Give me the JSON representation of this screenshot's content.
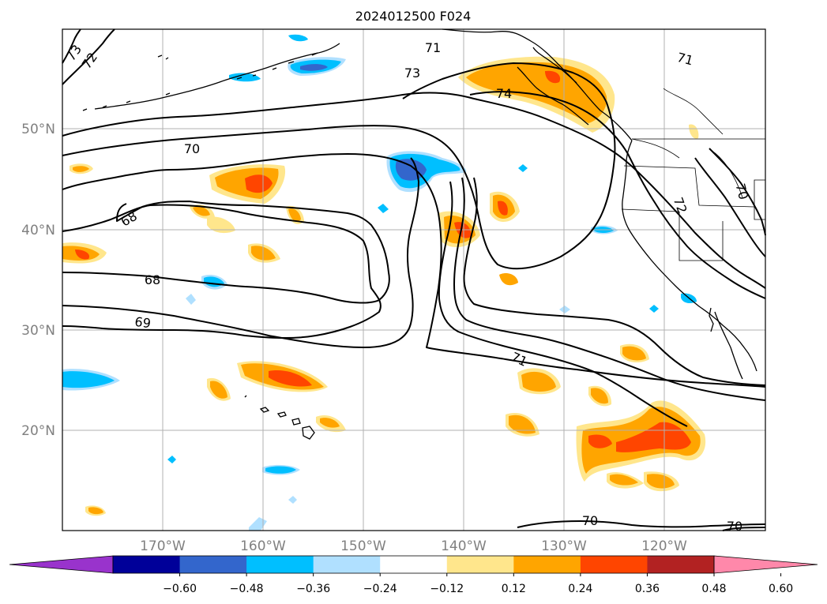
{
  "title": "2024012500 F024",
  "lat_labels": [
    "50°N",
    "40°N",
    "30°N",
    "20°N"
  ],
  "lon_labels": [
    "170°W",
    "160°W",
    "150°W",
    "140°W",
    "130°W",
    "120°W"
  ],
  "contour_labels": [
    "73",
    "72",
    "71",
    "73",
    "74",
    "71",
    "70",
    "68",
    "68",
    "69",
    "71",
    "70",
    "70",
    "72",
    "70"
  ],
  "colorbar": {
    "tick_labels": [
      "−0.60",
      "−0.48",
      "−0.36",
      "−0.24",
      "−0.12",
      "0.12",
      "0.24",
      "0.36",
      "0.48",
      "0.60"
    ],
    "colors": [
      "#9933cc",
      "#000099",
      "#3366cc",
      "#00bfff",
      "#b0e0ff",
      "#ffffff",
      "#ffe68c",
      "#ffa500",
      "#ff4500",
      "#b22222",
      "#ff88aa"
    ]
  },
  "field_colors": {
    "pos_low": "#ffe68c",
    "pos_mid": "#ffa500",
    "pos_high": "#ff4500",
    "neg_low": "#b0e0ff",
    "neg_mid": "#00bfff",
    "neg_high": "#3366cc"
  }
}
